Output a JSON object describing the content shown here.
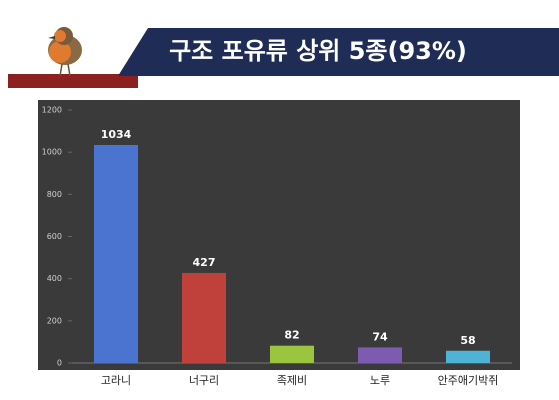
{
  "chart_data": {
    "type": "bar",
    "title": "구조 포유류 상위 5종(93%)",
    "categories": [
      "고라니",
      "너구리",
      "족제비",
      "노루",
      "안주애기박쥐"
    ],
    "values": [
      1034,
      427,
      82,
      74,
      58
    ],
    "colors": [
      "#4a74cf",
      "#c0403c",
      "#9bc43f",
      "#7d5bb0",
      "#4fb3d6"
    ],
    "ylim": [
      0,
      1200
    ],
    "yticks": [
      0,
      200,
      400,
      600,
      800,
      1000,
      1200
    ]
  }
}
